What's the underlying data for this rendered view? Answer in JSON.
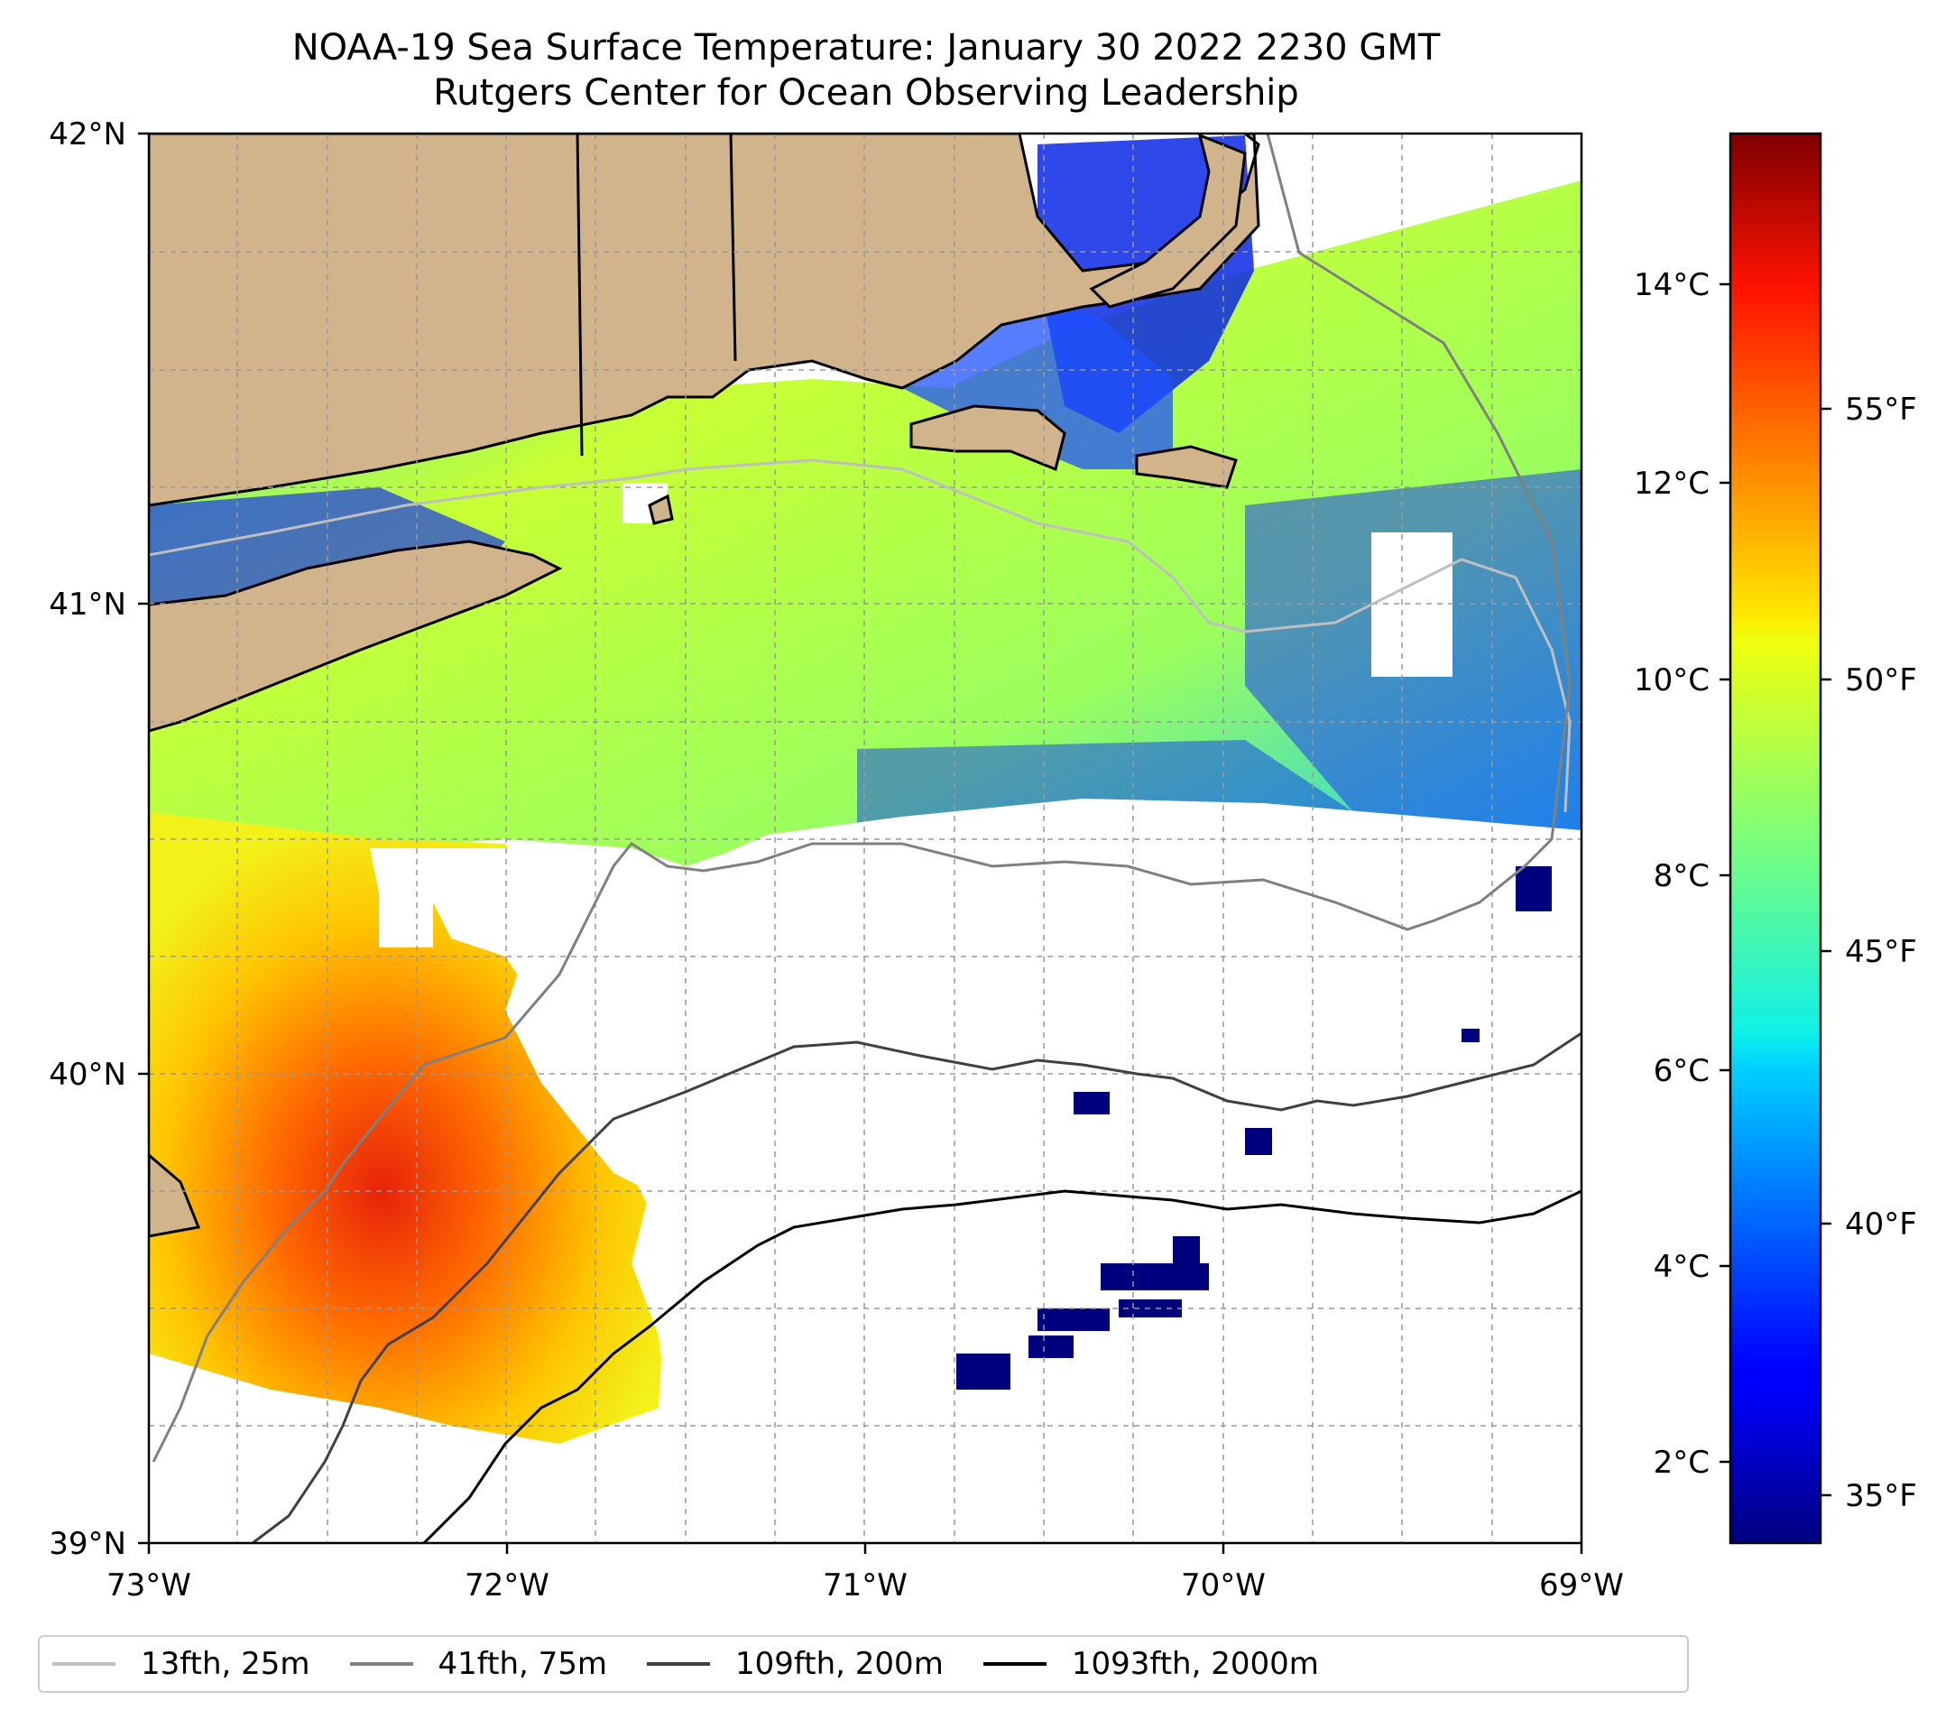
{
  "title": {
    "line1": "NOAA-19 Sea Surface Temperature: January 30 2022 2230 GMT",
    "line2": "Rutgers Center for Ocean Observing Leadership"
  },
  "map": {
    "lon_range": [
      -73,
      -69
    ],
    "lat_range": [
      39,
      42
    ],
    "x_ticks": [
      "73°W",
      "72°W",
      "71°W",
      "70°W",
      "69°W"
    ],
    "y_ticks": [
      "42°N",
      "41°N",
      "40°N",
      "39°N"
    ],
    "gridlines": true,
    "land_color": "#d2b48c",
    "no_data_color": "#ffffff"
  },
  "colorbar": {
    "colormap": "jet",
    "celsius_range": [
      1.3,
      15.5
    ],
    "celsius_ticks": [
      "14°C",
      "12°C",
      "10°C",
      "8°C",
      "6°C",
      "4°C",
      "2°C"
    ],
    "fahrenheit_ticks": [
      "55°F",
      "50°F",
      "45°F",
      "40°F",
      "35°F"
    ]
  },
  "legend": {
    "position": "bottom",
    "items": [
      {
        "label": "13fth, 25m",
        "color": "#bfbfbf"
      },
      {
        "label": "41fth, 75m",
        "color": "#808080"
      },
      {
        "label": "109fth, 200m",
        "color": "#404040"
      },
      {
        "label": "1093fth, 2000m",
        "color": "#000000"
      }
    ]
  }
}
